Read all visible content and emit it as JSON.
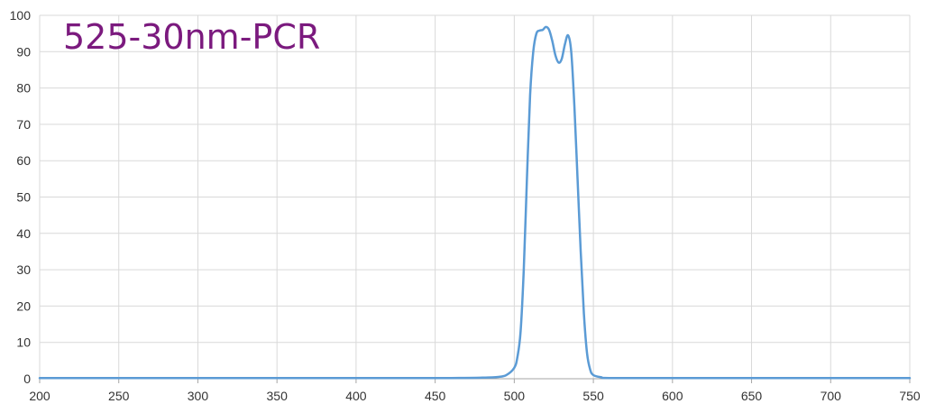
{
  "chart_data": {
    "type": "line",
    "title": "525-30nm-PCR",
    "xlabel": "",
    "ylabel": "",
    "xlim": [
      200,
      750
    ],
    "ylim": [
      0,
      100
    ],
    "x_ticks": [
      200,
      250,
      300,
      350,
      400,
      450,
      500,
      550,
      600,
      650,
      700,
      750
    ],
    "y_ticks": [
      0,
      10,
      20,
      30,
      40,
      50,
      60,
      70,
      80,
      90,
      100
    ],
    "grid": true,
    "legend": "none",
    "series": [
      {
        "x": [
          200,
          300,
          400,
          460,
          480,
          490,
          495,
          500,
          502,
          504,
          506,
          508,
          510,
          512,
          514,
          516,
          518,
          520,
          522,
          524,
          526,
          528,
          530,
          532,
          534,
          536,
          538,
          540,
          542,
          544,
          546,
          548,
          550,
          555,
          560,
          600,
          700,
          750
        ],
        "y": [
          0.2,
          0.2,
          0.2,
          0.2,
          0.3,
          0.5,
          1,
          3,
          6,
          13,
          30,
          55,
          78,
          90,
          95,
          95.8,
          96,
          96.8,
          96,
          93,
          89,
          87,
          88,
          92,
          94.5,
          90,
          75,
          55,
          35,
          18,
          7,
          2.5,
          1,
          0.4,
          0.2,
          0.2,
          0.2,
          0.2
        ]
      }
    ],
    "colors": {
      "line": "#5b9bd5",
      "title": "#7b1a7e",
      "grid": "#d9d9d9",
      "axis": "#a6a6a6"
    }
  }
}
